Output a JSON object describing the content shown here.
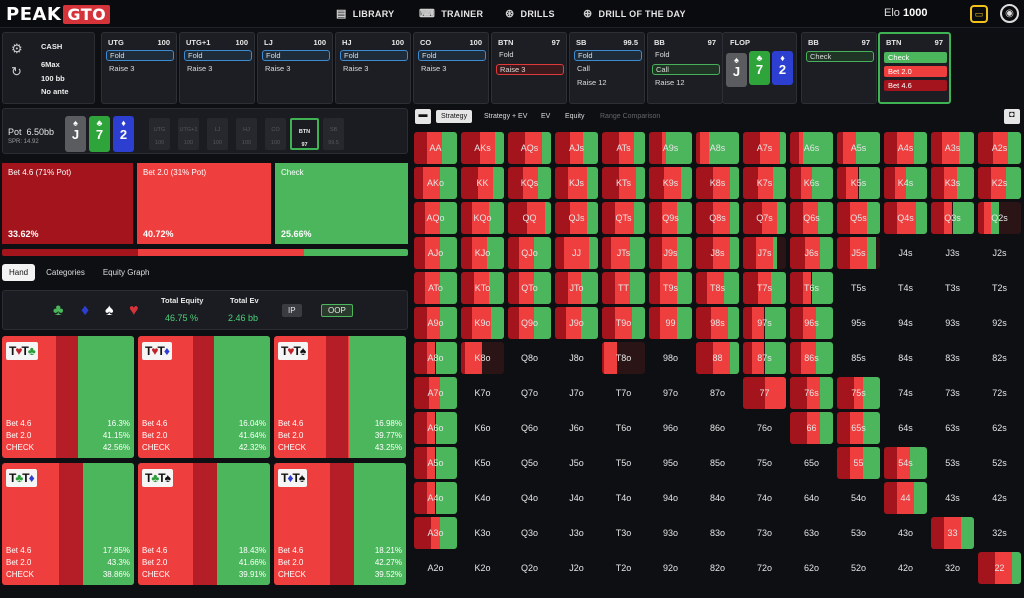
{
  "nav": {
    "logo_a": "PEAK",
    "logo_b": "GTO",
    "items": [
      {
        "icon": "library-icon",
        "label": "LIBRARY"
      },
      {
        "icon": "trainer-icon",
        "label": "TRAINER"
      },
      {
        "icon": "drills-icon",
        "label": "DRILLS"
      },
      {
        "icon": "drill-of-day-icon",
        "label": "DRILL OF THE DAY"
      }
    ],
    "elo_label": "Elo",
    "elo_value": "1000"
  },
  "game": {
    "type": "CASH",
    "players": "6Max",
    "stack": "100 bb",
    "ante": "No ante"
  },
  "positions": [
    {
      "name": "UTG",
      "stack": "100",
      "opts": [
        {
          "t": "Fold",
          "s": "sel"
        },
        {
          "t": "Raise 3",
          "s": ""
        }
      ]
    },
    {
      "name": "UTG+1",
      "stack": "100",
      "opts": [
        {
          "t": "Fold",
          "s": "sel"
        },
        {
          "t": "Raise 3",
          "s": ""
        }
      ]
    },
    {
      "name": "LJ",
      "stack": "100",
      "opts": [
        {
          "t": "Fold",
          "s": "sel"
        },
        {
          "t": "Raise 3",
          "s": ""
        }
      ]
    },
    {
      "name": "HJ",
      "stack": "100",
      "opts": [
        {
          "t": "Fold",
          "s": "sel"
        },
        {
          "t": "Raise 3",
          "s": ""
        }
      ]
    },
    {
      "name": "CO",
      "stack": "100",
      "opts": [
        {
          "t": "Fold",
          "s": "sel"
        },
        {
          "t": "Raise 3",
          "s": ""
        }
      ]
    },
    {
      "name": "BTN",
      "stack": "97",
      "opts": [
        {
          "t": "Fold",
          "s": ""
        },
        {
          "t": "Raise 3",
          "s": "selr"
        }
      ]
    },
    {
      "name": "SB",
      "stack": "99.5",
      "opts": [
        {
          "t": "Fold",
          "s": "sel"
        },
        {
          "t": "Call",
          "s": ""
        },
        {
          "t": "Raise 12",
          "s": ""
        }
      ]
    },
    {
      "name": "BB",
      "stack": "97",
      "opts": [
        {
          "t": "Fold",
          "s": ""
        },
        {
          "t": "Call",
          "s": "selg"
        },
        {
          "t": "Raise 12",
          "s": ""
        }
      ]
    }
  ],
  "flop": {
    "label": "FLOP",
    "cards": [
      {
        "r": "J",
        "s": "♠",
        "c": "cg"
      },
      {
        "r": "7",
        "s": "♣",
        "c": "cgr"
      },
      {
        "r": "2",
        "s": "♦",
        "c": "cb"
      }
    ]
  },
  "bb_panel": {
    "name": "BB",
    "stack": "97",
    "opt": "Check"
  },
  "btn_panel": {
    "name": "BTN",
    "stack": "97",
    "opts": [
      "Check",
      "Bet 2.0",
      "Bet 4.6"
    ]
  },
  "pot": {
    "label": "Pot",
    "value": "6.50bb",
    "spr": "SPR: 14.92"
  },
  "seats": [
    {
      "n": "UTG",
      "s": "100"
    },
    {
      "n": "UTG+1",
      "s": "100"
    },
    {
      "n": "LJ",
      "s": "100"
    },
    {
      "n": "HJ",
      "s": "100"
    },
    {
      "n": "CO",
      "s": "100"
    },
    {
      "n": "BTN",
      "s": "97"
    },
    {
      "n": "SB",
      "s": "99.5"
    }
  ],
  "actions": [
    {
      "label": "Bet 4.6 (71% Pot)",
      "pct": "33.62%",
      "color": "#a3141c"
    },
    {
      "label": "Bet 2.0 (31% Pot)",
      "pct": "40.72%",
      "color": "#ef3e3e"
    },
    {
      "label": "Check",
      "pct": "25.66%",
      "color": "#4bb65c"
    }
  ],
  "tabs": [
    "Hand",
    "Categories",
    "Equity Graph"
  ],
  "equity": {
    "total_equity_label": "Total Equity",
    "total_equity": "46.75 %",
    "total_ev_label": "Total Ev",
    "total_ev": "2.46 bb",
    "ip": "IP",
    "oop": "OOP"
  },
  "hands": [
    {
      "r1": "T",
      "s1": "♥",
      "c1": "",
      "r2": "T",
      "s2": "♣",
      "c2": "g",
      "b46": "16.3%",
      "b20": "41.15%",
      "chk": "42.56%"
    },
    {
      "r1": "T",
      "s1": "♥",
      "c1": "",
      "r2": "T",
      "s2": "♦",
      "c2": "b",
      "b46": "16.04%",
      "b20": "41.64%",
      "chk": "42.32%"
    },
    {
      "r1": "T",
      "s1": "♥",
      "c1": "",
      "r2": "T",
      "s2": "♠",
      "c2": "k",
      "b46": "16.98%",
      "b20": "39.77%",
      "chk": "43.25%"
    },
    {
      "r1": "T",
      "s1": "♣",
      "c1": "g",
      "r2": "T",
      "s2": "♦",
      "c2": "b",
      "b46": "17.85%",
      "b20": "43.3%",
      "chk": "38.86%"
    },
    {
      "r1": "T",
      "s1": "♣",
      "c1": "g",
      "r2": "T",
      "s2": "♠",
      "c2": "k",
      "b46": "18.43%",
      "b20": "41.66%",
      "chk": "39.91%"
    },
    {
      "r1": "T",
      "s1": "♦",
      "c1": "b",
      "r2": "T",
      "s2": "♠",
      "c2": "k",
      "b46": "18.21%",
      "b20": "42.27%",
      "chk": "39.52%"
    }
  ],
  "row_labels": {
    "b46": "Bet 4.6",
    "b20": "Bet 2.0",
    "chk": "CHECK"
  },
  "matrix_tabs": [
    "Strategy",
    "Strategy + EV",
    "EV",
    "Equity",
    "Range Comparison"
  ],
  "ranks": [
    "A",
    "K",
    "Q",
    "J",
    "T",
    "9",
    "8",
    "7",
    "6",
    "5",
    "4",
    "3",
    "2"
  ],
  "range": [
    [
      [
        30,
        35,
        35
      ],
      [
        45,
        35,
        20
      ],
      [
        40,
        40,
        20
      ],
      [
        35,
        30,
        35
      ],
      [
        40,
        35,
        25
      ],
      [
        30,
        10,
        60
      ],
      [
        10,
        20,
        70
      ],
      [
        40,
        45,
        15
      ],
      [
        20,
        10,
        70
      ],
      [
        15,
        30,
        55
      ],
      [
        30,
        40,
        30
      ],
      [
        25,
        40,
        35
      ],
      [
        35,
        35,
        30
      ]
    ],
    [
      [
        20,
        40,
        40
      ],
      [
        40,
        35,
        25
      ],
      [
        35,
        35,
        30
      ],
      [
        30,
        45,
        25
      ],
      [
        40,
        40,
        20
      ],
      [
        35,
        40,
        25
      ],
      [
        40,
        40,
        20
      ],
      [
        35,
        35,
        30
      ],
      [
        25,
        25,
        50
      ],
      [
        20,
        30,
        50
      ],
      [
        25,
        25,
        50
      ],
      [
        30,
        30,
        40
      ],
      [
        30,
        35,
        35
      ]
    ],
    [
      [
        25,
        35,
        40
      ],
      [
        25,
        40,
        35
      ],
      [
        45,
        40,
        15
      ],
      [
        35,
        40,
        25
      ],
      [
        30,
        45,
        25
      ],
      [
        30,
        35,
        35
      ],
      [
        40,
        40,
        20
      ],
      [
        45,
        35,
        20
      ],
      [
        30,
        35,
        35
      ],
      [
        30,
        40,
        30
      ],
      [
        30,
        45,
        25
      ],
      [
        30,
        20,
        50
      ],
      [
        15,
        15,
        20
      ]
    ],
    [
      [
        25,
        35,
        40
      ],
      [
        25,
        35,
        40
      ],
      [
        25,
        35,
        40
      ],
      [
        20,
        60,
        20
      ],
      [
        20,
        45,
        35
      ],
      [
        30,
        35,
        35
      ],
      [
        40,
        40,
        20
      ],
      [
        30,
        40,
        10
      ],
      [
        35,
        35,
        30
      ],
      [
        30,
        40,
        20
      ],
      [
        0,
        0,
        0
      ],
      [
        0,
        0,
        0
      ],
      [
        0,
        0,
        0
      ]
    ],
    [
      [
        25,
        35,
        40
      ],
      [
        30,
        35,
        35
      ],
      [
        25,
        35,
        40
      ],
      [
        30,
        30,
        40
      ],
      [
        30,
        35,
        35
      ],
      [
        25,
        40,
        35
      ],
      [
        25,
        40,
        35
      ],
      [
        35,
        30,
        35
      ],
      [
        30,
        20,
        50
      ],
      [
        0,
        0,
        0
      ],
      [
        0,
        0,
        0
      ],
      [
        0,
        0,
        0
      ],
      [
        0,
        0,
        0
      ]
    ],
    [
      [
        30,
        30,
        40
      ],
      [
        25,
        45,
        30
      ],
      [
        25,
        35,
        40
      ],
      [
        25,
        35,
        40
      ],
      [
        30,
        40,
        30
      ],
      [
        25,
        40,
        35
      ],
      [
        35,
        40,
        25
      ],
      [
        20,
        30,
        50
      ],
      [
        30,
        30,
        40
      ],
      [
        0,
        0,
        0
      ],
      [
        0,
        0,
        0
      ],
      [
        0,
        0,
        0
      ],
      [
        0,
        0,
        0
      ]
    ],
    [
      [
        30,
        20,
        50
      ],
      [
        10,
        40,
        0
      ],
      [
        0,
        0,
        0
      ],
      [
        0,
        0,
        0
      ],
      [
        5,
        30,
        0
      ],
      [
        0,
        0,
        0
      ],
      [
        40,
        40,
        20
      ],
      [
        20,
        30,
        50
      ],
      [
        25,
        35,
        40
      ],
      [
        0,
        0,
        0
      ],
      [
        0,
        0,
        0
      ],
      [
        0,
        0,
        0
      ],
      [
        0,
        0,
        0
      ]
    ],
    [
      [
        35,
        25,
        40
      ],
      [
        0,
        0,
        0
      ],
      [
        0,
        0,
        0
      ],
      [
        0,
        0,
        0
      ],
      [
        0,
        0,
        0
      ],
      [
        0,
        0,
        0
      ],
      [
        0,
        0,
        0
      ],
      [
        50,
        50,
        0
      ],
      [
        40,
        30,
        30
      ],
      [
        40,
        20,
        40
      ],
      [
        0,
        0,
        0
      ],
      [
        0,
        0,
        0
      ],
      [
        0,
        0,
        0
      ]
    ],
    [
      [
        30,
        20,
        50
      ],
      [
        0,
        0,
        0
      ],
      [
        0,
        0,
        0
      ],
      [
        0,
        0,
        0
      ],
      [
        0,
        0,
        0
      ],
      [
        0,
        0,
        0
      ],
      [
        0,
        0,
        0
      ],
      [
        0,
        0,
        0
      ],
      [
        40,
        30,
        30
      ],
      [
        30,
        30,
        40
      ],
      [
        0,
        0,
        0
      ],
      [
        0,
        0,
        0
      ],
      [
        0,
        0,
        0
      ]
    ],
    [
      [
        30,
        20,
        50
      ],
      [
        0,
        0,
        0
      ],
      [
        0,
        0,
        0
      ],
      [
        0,
        0,
        0
      ],
      [
        0,
        0,
        0
      ],
      [
        0,
        0,
        0
      ],
      [
        0,
        0,
        0
      ],
      [
        0,
        0,
        0
      ],
      [
        0,
        0,
        0
      ],
      [
        30,
        30,
        40
      ],
      [
        30,
        30,
        40
      ],
      [
        0,
        0,
        0
      ],
      [
        0,
        0,
        0
      ]
    ],
    [
      [
        30,
        20,
        50
      ],
      [
        0,
        0,
        0
      ],
      [
        0,
        0,
        0
      ],
      [
        0,
        0,
        0
      ],
      [
        0,
        0,
        0
      ],
      [
        0,
        0,
        0
      ],
      [
        0,
        0,
        0
      ],
      [
        0,
        0,
        0
      ],
      [
        0,
        0,
        0
      ],
      [
        0,
        0,
        0
      ],
      [
        30,
        40,
        30
      ],
      [
        0,
        0,
        0
      ],
      [
        0,
        0,
        0
      ]
    ],
    [
      [
        40,
        20,
        40
      ],
      [
        0,
        0,
        0
      ],
      [
        0,
        0,
        0
      ],
      [
        0,
        0,
        0
      ],
      [
        0,
        0,
        0
      ],
      [
        0,
        0,
        0
      ],
      [
        0,
        0,
        0
      ],
      [
        0,
        0,
        0
      ],
      [
        0,
        0,
        0
      ],
      [
        0,
        0,
        0
      ],
      [
        0,
        0,
        0
      ],
      [
        30,
        40,
        30
      ],
      [
        0,
        0,
        0
      ]
    ],
    [
      [
        0,
        0,
        0
      ],
      [
        0,
        0,
        0
      ],
      [
        0,
        0,
        0
      ],
      [
        0,
        0,
        0
      ],
      [
        0,
        0,
        0
      ],
      [
        0,
        0,
        0
      ],
      [
        0,
        0,
        0
      ],
      [
        0,
        0,
        0
      ],
      [
        0,
        0,
        0
      ],
      [
        0,
        0,
        0
      ],
      [
        0,
        0,
        0
      ],
      [
        0,
        0,
        0
      ],
      [
        40,
        40,
        20
      ]
    ]
  ],
  "colors": {
    "bet_big": "#a3141c",
    "bet_small": "#ef3e3e",
    "check": "#4bb65c",
    "accent": "#3fb254"
  }
}
